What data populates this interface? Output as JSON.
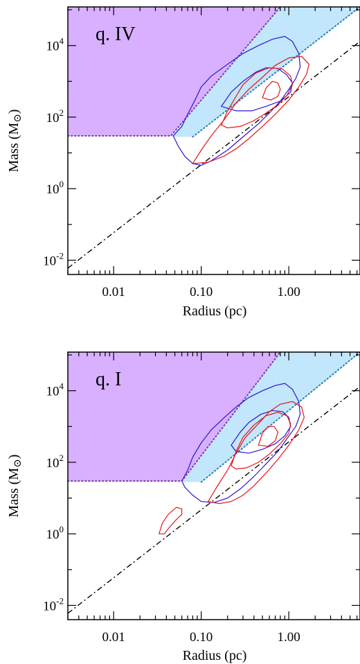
{
  "chart_data": [
    {
      "type": "contour",
      "panel_label": "q. IV",
      "xlabel": "Radius (pc)",
      "ylabel": "Mass (M",
      "ylabel_unit_symbol": "⊙",
      "ylabel_close": ")",
      "xscale": "log",
      "yscale": "log",
      "xlim": [
        0.003,
        6.5
      ],
      "ylim": [
        0.004,
        120000
      ],
      "xticks": [
        {
          "v": 0.01,
          "label": "0.01"
        },
        {
          "v": 0.1,
          "label": "0.10"
        },
        {
          "v": 1,
          "label": "1.00"
        }
      ],
      "yticks": [
        {
          "v": 0.01,
          "base": "10",
          "exp": "-2"
        },
        {
          "v": 1,
          "base": "10",
          "exp": "0"
        },
        {
          "v": 100,
          "base": "10",
          "exp": "2"
        },
        {
          "v": 10000,
          "base": "10",
          "exp": "4"
        }
      ],
      "dashdot_line": [
        [
          0.003,
          0.006
        ],
        [
          6.5,
          13000
        ]
      ],
      "purple_region": {
        "mass_floor": 30,
        "upper_line": [
          [
            0.003,
            30
          ],
          [
            0.045,
            30
          ],
          [
            0.8,
            120000
          ]
        ]
      },
      "blue_band": {
        "upper": [
          [
            0.045,
            28
          ],
          [
            0.8,
            120000
          ],
          [
            6.5,
            120000
          ]
        ],
        "lower": [
          [
            0.08,
            28
          ],
          [
            6.5,
            120000
          ]
        ]
      },
      "contours_blue": [
        [
          [
            0.048,
            30
          ],
          [
            0.06,
            55
          ],
          [
            0.07,
            120
          ],
          [
            0.085,
            300
          ],
          [
            0.1,
            700
          ],
          [
            0.13,
            1400
          ],
          [
            0.2,
            3000
          ],
          [
            0.3,
            6000
          ],
          [
            0.45,
            10000
          ],
          [
            0.65,
            15000
          ],
          [
            0.9,
            18000
          ],
          [
            1.1,
            13000
          ],
          [
            1.3,
            6000
          ],
          [
            1.35,
            2500
          ],
          [
            1.2,
            1200
          ],
          [
            1.0,
            600
          ],
          [
            0.8,
            280
          ],
          [
            0.6,
            130
          ],
          [
            0.45,
            65
          ],
          [
            0.3,
            28
          ],
          [
            0.2,
            12
          ],
          [
            0.13,
            6
          ],
          [
            0.1,
            4.5
          ],
          [
            0.08,
            5
          ],
          [
            0.065,
            8
          ],
          [
            0.055,
            15
          ],
          [
            0.048,
            30
          ]
        ],
        [
          [
            0.17,
            200
          ],
          [
            0.22,
            500
          ],
          [
            0.3,
            1000
          ],
          [
            0.42,
            1800
          ],
          [
            0.55,
            2400
          ],
          [
            0.75,
            2300
          ],
          [
            0.95,
            1500
          ],
          [
            1.1,
            900
          ],
          [
            1.05,
            500
          ],
          [
            0.8,
            280
          ],
          [
            0.55,
            200
          ],
          [
            0.38,
            150
          ],
          [
            0.25,
            150
          ],
          [
            0.17,
            200
          ]
        ]
      ],
      "contours_red": [
        [
          [
            0.08,
            5
          ],
          [
            0.1,
            12
          ],
          [
            0.13,
            30
          ],
          [
            0.18,
            80
          ],
          [
            0.25,
            250
          ],
          [
            0.35,
            600
          ],
          [
            0.5,
            1300
          ],
          [
            0.7,
            2800
          ],
          [
            1.0,
            4500
          ],
          [
            1.4,
            5000
          ],
          [
            1.7,
            3000
          ],
          [
            1.6,
            1600
          ],
          [
            1.3,
            700
          ],
          [
            1.0,
            300
          ],
          [
            0.7,
            120
          ],
          [
            0.5,
            55
          ],
          [
            0.35,
            25
          ],
          [
            0.25,
            13
          ],
          [
            0.18,
            8
          ],
          [
            0.12,
            5.5
          ],
          [
            0.08,
            5
          ]
        ],
        [
          [
            0.17,
            60
          ],
          [
            0.2,
            150
          ],
          [
            0.25,
            380
          ],
          [
            0.3,
            800
          ],
          [
            0.42,
            1700
          ],
          [
            0.6,
            2400
          ],
          [
            0.85,
            2200
          ],
          [
            1.05,
            1400
          ],
          [
            1.1,
            800
          ],
          [
            0.95,
            400
          ],
          [
            0.75,
            220
          ],
          [
            0.55,
            130
          ],
          [
            0.4,
            80
          ],
          [
            0.28,
            55
          ],
          [
            0.2,
            50
          ],
          [
            0.17,
            60
          ]
        ],
        [
          [
            0.5,
            350
          ],
          [
            0.55,
            650
          ],
          [
            0.65,
            1000
          ],
          [
            0.75,
            900
          ],
          [
            0.8,
            600
          ],
          [
            0.75,
            380
          ],
          [
            0.62,
            300
          ],
          [
            0.5,
            350
          ]
        ]
      ]
    },
    {
      "type": "contour",
      "panel_label": "q. I",
      "xlabel": "Radius (pc)",
      "ylabel": "Mass (M",
      "ylabel_unit_symbol": "⊙",
      "ylabel_close": ")",
      "xscale": "log",
      "yscale": "log",
      "xlim": [
        0.003,
        6.5
      ],
      "ylim": [
        0.004,
        120000
      ],
      "xticks": [
        {
          "v": 0.01,
          "label": "0.01"
        },
        {
          "v": 0.1,
          "label": "0.10"
        },
        {
          "v": 1,
          "label": "1.00"
        }
      ],
      "yticks": [
        {
          "v": 0.01,
          "base": "10",
          "exp": "-2"
        },
        {
          "v": 1,
          "base": "10",
          "exp": "0"
        },
        {
          "v": 100,
          "base": "10",
          "exp": "2"
        },
        {
          "v": 10000,
          "base": "10",
          "exp": "4"
        }
      ],
      "dashdot_line": [
        [
          0.003,
          0.006
        ],
        [
          6.5,
          13000
        ]
      ],
      "purple_region": {
        "mass_floor": 30,
        "upper_line": [
          [
            0.003,
            30
          ],
          [
            0.06,
            30
          ],
          [
            0.8,
            120000
          ]
        ]
      },
      "blue_band": {
        "upper": [
          [
            0.06,
            28
          ],
          [
            0.8,
            120000
          ],
          [
            6.5,
            120000
          ]
        ],
        "lower": [
          [
            0.1,
            28
          ],
          [
            6.5,
            120000
          ]
        ]
      },
      "contours_blue": [
        [
          [
            0.06,
            30
          ],
          [
            0.07,
            60
          ],
          [
            0.08,
            140
          ],
          [
            0.1,
            350
          ],
          [
            0.13,
            800
          ],
          [
            0.18,
            1700
          ],
          [
            0.25,
            3500
          ],
          [
            0.35,
            6500
          ],
          [
            0.5,
            10000
          ],
          [
            0.7,
            14000
          ],
          [
            0.9,
            16000
          ],
          [
            1.1,
            11000
          ],
          [
            1.3,
            5000
          ],
          [
            1.35,
            2200
          ],
          [
            1.2,
            1000
          ],
          [
            0.95,
            450
          ],
          [
            0.75,
            200
          ],
          [
            0.55,
            90
          ],
          [
            0.4,
            40
          ],
          [
            0.28,
            18
          ],
          [
            0.2,
            10
          ],
          [
            0.14,
            7.5
          ],
          [
            0.1,
            8
          ],
          [
            0.08,
            12
          ],
          [
            0.065,
            20
          ],
          [
            0.06,
            30
          ]
        ],
        [
          [
            0.22,
            300
          ],
          [
            0.28,
            700
          ],
          [
            0.35,
            1300
          ],
          [
            0.48,
            2200
          ],
          [
            0.65,
            2800
          ],
          [
            0.85,
            2600
          ],
          [
            1.0,
            1800
          ],
          [
            1.05,
            1000
          ],
          [
            0.9,
            550
          ],
          [
            0.7,
            330
          ],
          [
            0.5,
            230
          ],
          [
            0.35,
            180
          ],
          [
            0.25,
            200
          ],
          [
            0.22,
            300
          ]
        ]
      ],
      "contours_red": [
        [
          [
            0.12,
            8
          ],
          [
            0.15,
            20
          ],
          [
            0.2,
            60
          ],
          [
            0.25,
            180
          ],
          [
            0.32,
            500
          ],
          [
            0.45,
            1200
          ],
          [
            0.6,
            2600
          ],
          [
            0.8,
            4200
          ],
          [
            1.1,
            5000
          ],
          [
            1.4,
            3500
          ],
          [
            1.5,
            1800
          ],
          [
            1.3,
            800
          ],
          [
            1.0,
            300
          ],
          [
            0.75,
            120
          ],
          [
            0.55,
            50
          ],
          [
            0.4,
            22
          ],
          [
            0.3,
            12
          ],
          [
            0.22,
            8
          ],
          [
            0.16,
            7
          ],
          [
            0.12,
            8
          ]
        ],
        [
          [
            0.22,
            80
          ],
          [
            0.25,
            200
          ],
          [
            0.3,
            500
          ],
          [
            0.4,
            1100
          ],
          [
            0.55,
            2000
          ],
          [
            0.75,
            2500
          ],
          [
            0.95,
            2000
          ],
          [
            1.05,
            1200
          ],
          [
            1.0,
            650
          ],
          [
            0.8,
            330
          ],
          [
            0.6,
            170
          ],
          [
            0.45,
            100
          ],
          [
            0.33,
            70
          ],
          [
            0.25,
            65
          ],
          [
            0.22,
            80
          ]
        ],
        [
          [
            0.45,
            300
          ],
          [
            0.5,
            650
          ],
          [
            0.58,
            1000
          ],
          [
            0.68,
            1000
          ],
          [
            0.75,
            700
          ],
          [
            0.7,
            400
          ],
          [
            0.58,
            280
          ],
          [
            0.45,
            300
          ]
        ],
        [
          [
            0.033,
            1.0
          ],
          [
            0.036,
            2.0
          ],
          [
            0.042,
            3.5
          ],
          [
            0.052,
            5.5
          ],
          [
            0.06,
            5.0
          ],
          [
            0.06,
            3.5
          ],
          [
            0.052,
            2.5
          ],
          [
            0.044,
            1.6
          ],
          [
            0.038,
            1.0
          ],
          [
            0.033,
            1.0
          ]
        ]
      ]
    }
  ]
}
